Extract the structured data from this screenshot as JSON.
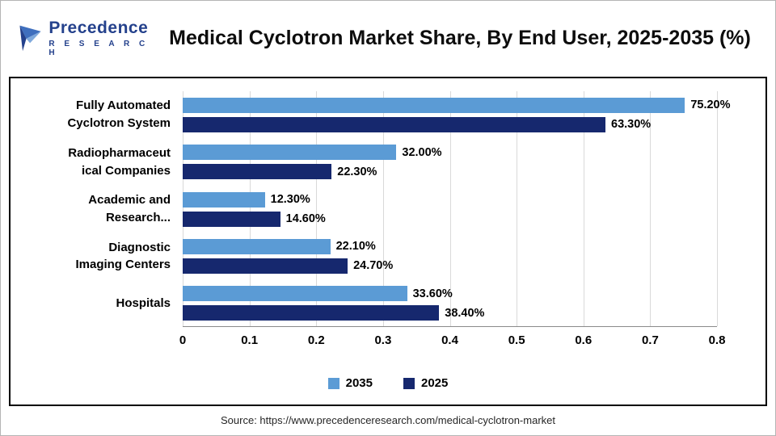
{
  "header": {
    "logo_title": "Precedence",
    "logo_subtitle": "R E S E A R C H",
    "title": "Medical Cyclotron Market Share, By End User, 2025-2035 (%)"
  },
  "chart_data": {
    "type": "bar",
    "orientation": "horizontal",
    "title": "Medical Cyclotron Market Share, By End User, 2025-2035 (%)",
    "categories": [
      "Fully Automated Cyclotron System",
      "Radiopharmaceutical Companies",
      "Academic and Research...",
      "Diagnostic Imaging Centers",
      "Hospitals"
    ],
    "category_display_lines": [
      [
        "Fully Automated",
        "Cyclotron System"
      ],
      [
        "Radiopharmaceut",
        "ical Companies"
      ],
      [
        "Academic and",
        "Research..."
      ],
      [
        "Diagnostic",
        "Imaging Centers"
      ],
      [
        "Hospitals"
      ]
    ],
    "series": [
      {
        "name": "2035",
        "color": "#5B9BD5",
        "values": [
          75.2,
          32.0,
          12.3,
          22.1,
          33.6
        ],
        "labels": [
          "75.20%",
          "32.00%",
          "12.30%",
          "22.10%",
          "33.60%"
        ]
      },
      {
        "name": "2025",
        "color": "#16286E",
        "values": [
          63.3,
          22.3,
          14.6,
          24.7,
          38.4
        ],
        "labels": [
          "63.30%",
          "22.30%",
          "14.60%",
          "24.70%",
          "38.40%"
        ]
      }
    ],
    "xlim": [
      0,
      0.8
    ],
    "x_ticks": [
      "0",
      "0.1",
      "0.2",
      "0.3",
      "0.4",
      "0.5",
      "0.6",
      "0.7",
      "0.8"
    ],
    "legend_position": "bottom",
    "grid": "vertical"
  },
  "footer": {
    "source": "Source: https://www.precedenceresearch.com/medical-cyclotron-market"
  }
}
